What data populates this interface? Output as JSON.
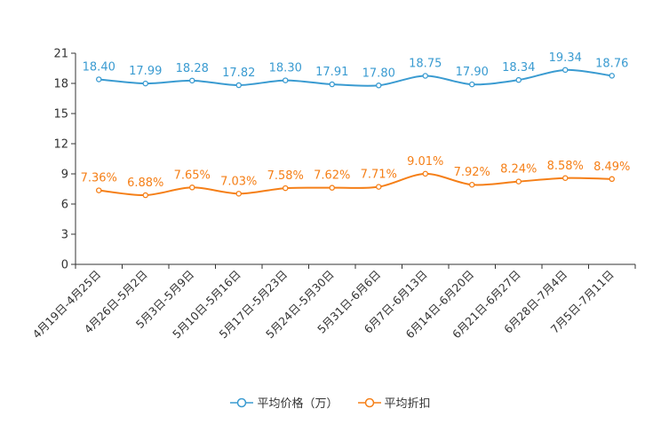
{
  "chart_data": {
    "type": "line",
    "title": "",
    "xlabel": "",
    "ylabel": "",
    "ylim": [
      0,
      21
    ],
    "yticks": [
      0,
      3,
      6,
      9,
      12,
      15,
      18,
      21
    ],
    "categories": [
      "4月19日-4月25日",
      "4月26日-5月2日",
      "5月3日-5月9日",
      "5月10日-5月16日",
      "5月17日-5月23日",
      "5月24日-5月30日",
      "5月31日-6月6日",
      "6月7日-6月13日",
      "6月14日-6月20日",
      "6月21日-6月27日",
      "6月28日-7月4日",
      "7月5日-7月11日"
    ],
    "series": [
      {
        "name": "平均价格（万）",
        "color": "#3a9bd1",
        "values": [
          18.4,
          17.99,
          18.28,
          17.82,
          18.3,
          17.91,
          17.8,
          18.75,
          17.9,
          18.34,
          19.34,
          18.76
        ],
        "labels": [
          "18.40",
          "17.99",
          "18.28",
          "17.82",
          "18.30",
          "17.91",
          "17.80",
          "18.75",
          "17.90",
          "18.34",
          "19.34",
          "18.76"
        ]
      },
      {
        "name": "平均折扣",
        "color": "#f57f17",
        "values": [
          7.36,
          6.88,
          7.65,
          7.03,
          7.58,
          7.62,
          7.71,
          9.01,
          7.92,
          8.24,
          8.58,
          8.49
        ],
        "labels": [
          "7.36%",
          "6.88%",
          "7.65%",
          "7.03%",
          "7.58%",
          "7.62%",
          "7.71%",
          "9.01%",
          "7.92%",
          "8.24%",
          "8.58%",
          "8.49%"
        ]
      }
    ],
    "legend_position": "bottom-center",
    "grid": false
  }
}
